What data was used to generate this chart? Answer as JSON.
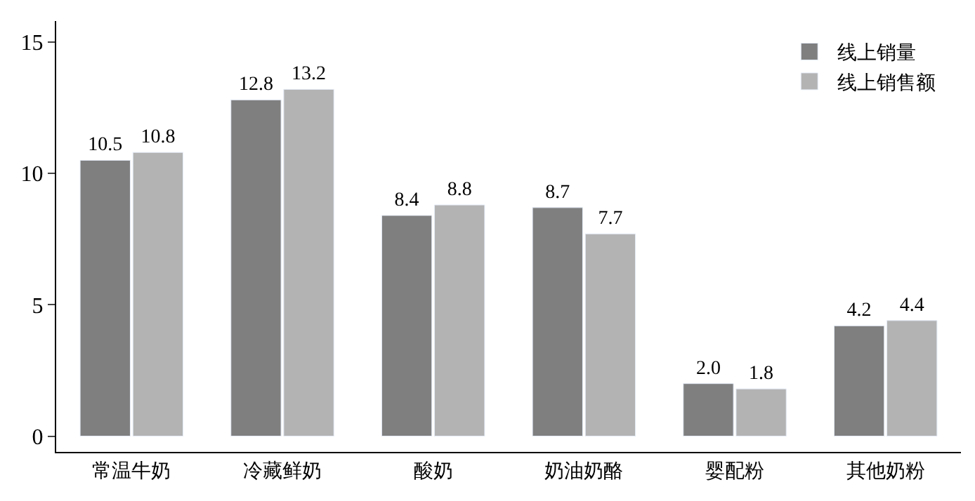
{
  "chart_data": {
    "type": "bar",
    "categories": [
      "常温牛奶",
      "冷藏鲜奶",
      "酸奶",
      "奶油奶酪",
      "婴配粉",
      "其他奶粉"
    ],
    "series": [
      {
        "name": "线上销量",
        "color": "#7f7f7f",
        "values": [
          10.5,
          12.8,
          8.4,
          8.7,
          2.0,
          4.2
        ],
        "value_labels": [
          "10.5",
          "12.8",
          "8.4",
          "8.7",
          "2.0",
          "4.2"
        ]
      },
      {
        "name": "线上销售额",
        "color": "#b3b3b3",
        "values": [
          10.8,
          13.2,
          8.8,
          7.7,
          1.8,
          4.4
        ],
        "value_labels": [
          "10.8",
          "13.2",
          "8.8",
          "7.7",
          "1.8",
          "4.4"
        ]
      }
    ],
    "ylim": [
      -0.6,
      15.8
    ],
    "yticks": [
      0,
      5,
      10,
      15
    ],
    "legend": "top right"
  }
}
